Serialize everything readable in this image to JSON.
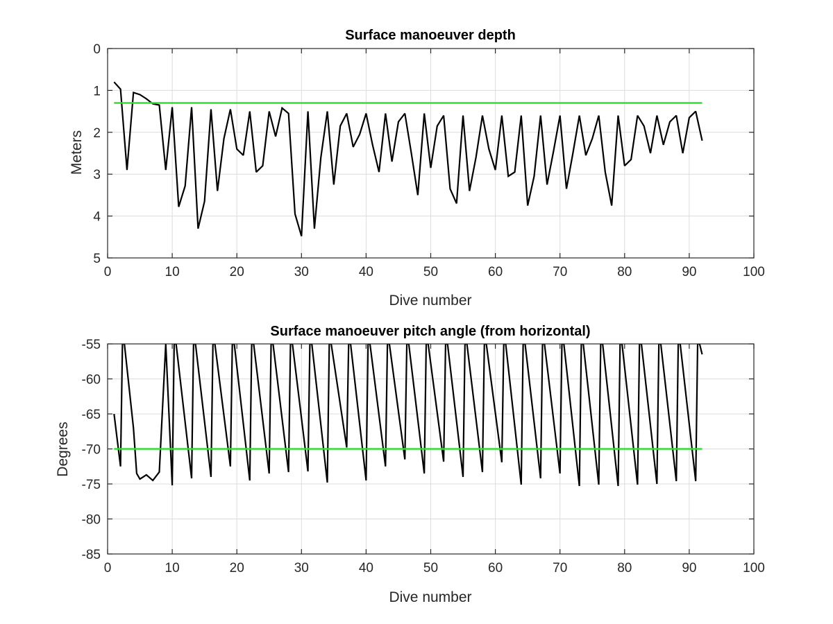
{
  "chart_data": [
    {
      "type": "line",
      "title": "Surface manoeuver depth",
      "xlabel": "Dive number",
      "ylabel": "Meters",
      "xlim": [
        0,
        100
      ],
      "ylim": [
        0,
        5
      ],
      "y_reversed": true,
      "grid": true,
      "xticks": [
        "0",
        "10",
        "20",
        "30",
        "40",
        "50",
        "60",
        "70",
        "80",
        "90",
        "100"
      ],
      "yticks": [
        "0",
        "1",
        "2",
        "3",
        "4",
        "5"
      ],
      "series": [
        {
          "color": "#000000",
          "x": [
            1,
            2,
            3,
            4,
            5,
            6,
            7,
            8,
            9,
            10,
            11,
            12,
            13,
            14,
            15,
            16,
            17,
            18,
            19,
            20,
            21,
            22,
            23,
            24,
            25,
            26,
            27,
            28,
            29,
            30,
            31,
            32,
            33,
            34,
            35,
            36,
            37,
            38,
            39,
            40,
            41,
            42,
            43,
            44,
            45,
            46,
            47,
            48,
            49,
            50,
            51,
            52,
            53,
            54,
            55,
            56,
            57,
            58,
            59,
            60,
            61,
            62,
            63,
            64,
            65,
            66,
            67,
            68,
            69,
            70,
            71,
            72,
            73,
            74,
            75,
            76,
            77,
            78,
            79,
            80,
            81,
            82,
            83,
            84,
            85,
            86,
            87,
            88,
            89,
            90,
            91,
            92
          ],
          "y": [
            0.8,
            0.97,
            2.9,
            1.05,
            1.1,
            1.2,
            1.32,
            1.35,
            2.9,
            1.4,
            3.78,
            3.28,
            1.4,
            4.3,
            3.65,
            1.45,
            3.4,
            2.15,
            1.45,
            2.4,
            2.55,
            1.5,
            2.95,
            2.8,
            1.5,
            2.1,
            1.42,
            1.55,
            3.95,
            4.48,
            1.5,
            4.3,
            2.6,
            1.5,
            3.25,
            1.85,
            1.55,
            2.35,
            2.05,
            1.55,
            2.3,
            2.95,
            1.55,
            2.7,
            1.75,
            1.55,
            2.5,
            3.5,
            1.55,
            2.85,
            1.85,
            1.6,
            3.35,
            3.7,
            1.6,
            3.4,
            2.6,
            1.6,
            2.4,
            2.9,
            1.6,
            3.05,
            2.95,
            1.6,
            3.75,
            3.05,
            1.6,
            3.25,
            2.45,
            1.6,
            3.35,
            2.5,
            1.6,
            2.55,
            2.15,
            1.6,
            2.95,
            3.75,
            1.6,
            2.8,
            2.65,
            1.6,
            1.85,
            2.5,
            1.6,
            2.3,
            1.75,
            1.6,
            2.5,
            1.65,
            1.5,
            2.2
          ]
        },
        {
          "color": "#33dd33",
          "x": [
            1,
            92
          ],
          "y": [
            1.3,
            1.3
          ]
        }
      ]
    },
    {
      "type": "line",
      "title": "Surface manoeuver pitch angle (from horizontal)",
      "xlabel": "Dive number",
      "ylabel": "Degrees",
      "xlim": [
        0,
        100
      ],
      "ylim": [
        -85,
        -55
      ],
      "y_reversed": false,
      "grid": true,
      "xticks": [
        "0",
        "10",
        "20",
        "30",
        "40",
        "50",
        "60",
        "70",
        "80",
        "90",
        "100"
      ],
      "yticks": [
        "-55",
        "-60",
        "-65",
        "-70",
        "-75",
        "-80",
        "-85"
      ],
      "series": [
        {
          "color": "#000000",
          "x": [
            1,
            2,
            2.3,
            2.6,
            4,
            4.5,
            5,
            5.5,
            6,
            7,
            8,
            9,
            10,
            10.3,
            10.6,
            13,
            13.3,
            13.6,
            16,
            16.3,
            16.6,
            19,
            19.3,
            19.6,
            22,
            22.3,
            22.6,
            25,
            25.3,
            25.6,
            28,
            28.3,
            28.6,
            31,
            31.3,
            31.6,
            34,
            34.3,
            34.6,
            37,
            37.3,
            37.6,
            40,
            40.3,
            40.6,
            43,
            43.3,
            43.6,
            46,
            46.3,
            46.6,
            49,
            49.3,
            49.6,
            52,
            52.3,
            52.6,
            55,
            55.3,
            55.6,
            58,
            58.3,
            58.6,
            61,
            61.3,
            61.6,
            64,
            64.3,
            64.6,
            67,
            67.3,
            67.6,
            70,
            70.3,
            70.6,
            73,
            73.3,
            73.6,
            76,
            76.3,
            76.6,
            79,
            79.3,
            79.6,
            82,
            82.3,
            82.6,
            85,
            85.3,
            85.6,
            88,
            88.3,
            88.6,
            91,
            91.3,
            91.6,
            92
          ],
          "y": [
            -65,
            -72.5,
            -55,
            -55,
            -67,
            -73.5,
            -74.3,
            -74,
            -73.7,
            -74.5,
            -73.3,
            -55,
            -75.2,
            -55,
            -55,
            -74.2,
            -55,
            -55,
            -74,
            -55,
            -55,
            -72.5,
            -55,
            -55,
            -74.5,
            -55,
            -55,
            -73.5,
            -55,
            -55,
            -73.3,
            -55,
            -55,
            -73.2,
            -55,
            -55,
            -74.8,
            -55,
            -55,
            -69.8,
            -55,
            -55,
            -74.5,
            -55,
            -55,
            -72.5,
            -55,
            -55,
            -71.5,
            -55,
            -55,
            -73.5,
            -55,
            -55,
            -71.8,
            -55,
            -55,
            -74,
            -55,
            -55,
            -73.3,
            -55,
            -55,
            -71.9,
            -55,
            -55,
            -75.1,
            -55,
            -55,
            -74.2,
            -55,
            -55,
            -73.5,
            -55,
            -55,
            -75.3,
            -55,
            -55,
            -75.1,
            -55,
            -55,
            -75.3,
            -55,
            -55,
            -75.1,
            -55,
            -55,
            -75,
            -55,
            -55,
            -74.6,
            -55,
            -55,
            -74.6,
            -55,
            -55,
            -56.5
          ]
        },
        {
          "color": "#33dd33",
          "x": [
            1,
            92
          ],
          "y": [
            -70,
            -70
          ]
        }
      ]
    }
  ]
}
